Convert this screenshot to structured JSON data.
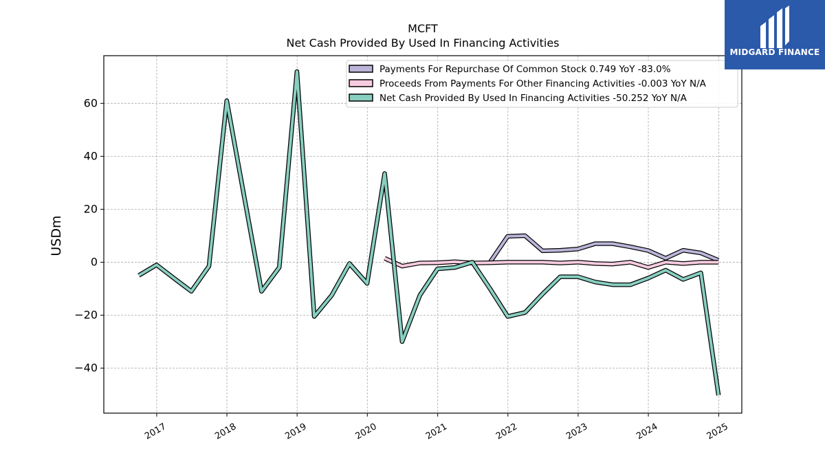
{
  "brand": {
    "name": "MIDGARD FINANCE",
    "bg_color": "#2b5aab"
  },
  "chart_data": {
    "type": "line",
    "title": "MCFT",
    "subtitle": "Net Cash Provided By Used In Financing Activities",
    "ylabel": "USDm",
    "xlabel": "",
    "xlim": [
      "2016-04-01",
      "2025-05-01"
    ],
    "ylim": [
      -57,
      78
    ],
    "yticks": [
      -40,
      -20,
      0,
      20,
      40,
      60
    ],
    "ytick_labels": [
      "−40",
      "−20",
      "0",
      "20",
      "40",
      "60"
    ],
    "xticks": [
      "2017-01-01",
      "2018-01-01",
      "2019-01-01",
      "2020-01-01",
      "2021-01-01",
      "2022-01-01",
      "2023-01-01",
      "2024-01-01",
      "2025-01-01"
    ],
    "xtick_labels": [
      "2017",
      "2018",
      "2019",
      "2020",
      "2021",
      "2022",
      "2023",
      "2024",
      "2025"
    ],
    "grid": true,
    "legend_position": "top-right",
    "series": [
      {
        "name": "Payments For Repurchase Of Common Stock",
        "legend_label": "Payments For Repurchase Of Common Stock  0.749 YoY -83.0%",
        "color": "#bcb4d8",
        "x": [
          "2021-09-30",
          "2021-12-31",
          "2022-03-31",
          "2022-06-30",
          "2022-09-30",
          "2022-12-31",
          "2023-03-31",
          "2023-06-30",
          "2023-09-30",
          "2023-12-31",
          "2024-03-31",
          "2024-06-30",
          "2024-09-30",
          "2024-12-31"
        ],
        "y": [
          0.0,
          9.8,
          10.0,
          4.3,
          4.5,
          5.0,
          7.0,
          7.0,
          5.8,
          4.4,
          1.5,
          4.5,
          3.5,
          0.749
        ]
      },
      {
        "name": "Proceeds From Payments For Other Financing Activities",
        "legend_label": "Proceeds From Payments For Other Financing Activities  -0.003 YoY N/A",
        "color": "#f8cce0",
        "x": [
          "2020-03-31",
          "2020-06-30",
          "2020-09-30",
          "2020-12-31",
          "2021-03-31",
          "2021-06-30",
          "2021-09-30",
          "2021-12-31",
          "2022-03-31",
          "2022-06-30",
          "2022-09-30",
          "2022-12-31",
          "2023-03-31",
          "2023-06-30",
          "2023-09-30",
          "2023-12-31",
          "2024-03-31",
          "2024-06-30",
          "2024-09-30",
          "2024-12-31"
        ],
        "y": [
          1.5,
          -1.5,
          -0.3,
          -0.2,
          0.2,
          -0.3,
          -0.2,
          0.0,
          0.0,
          0.0,
          -0.3,
          0.0,
          -0.5,
          -0.7,
          0.0,
          -2.0,
          0.0,
          -0.5,
          0.0,
          -0.003
        ]
      },
      {
        "name": "Net Cash Provided By Used In Financing Activities",
        "legend_label": "Net Cash Provided By Used In Financing Activities  -50.252 YoY N/A",
        "color": "#88cfc1",
        "x": [
          "2016-09-30",
          "2016-12-31",
          "2017-03-31",
          "2017-06-30",
          "2017-09-30",
          "2017-12-31",
          "2018-03-31",
          "2018-06-30",
          "2018-09-30",
          "2018-12-31",
          "2019-03-31",
          "2019-06-30",
          "2019-09-30",
          "2019-12-31",
          "2020-03-31",
          "2020-06-30",
          "2020-09-30",
          "2020-12-31",
          "2021-03-31",
          "2021-06-30",
          "2021-09-30",
          "2021-12-31",
          "2022-03-31",
          "2022-06-30",
          "2022-09-30",
          "2022-12-31",
          "2023-03-31",
          "2023-06-30",
          "2023-09-30",
          "2023-12-31",
          "2024-03-31",
          "2024-06-30",
          "2024-09-30",
          "2024-12-31"
        ],
        "y": [
          -5.0,
          -1.0,
          -6.0,
          -11.0,
          -1.5,
          61.0,
          25.0,
          -11.0,
          -2.0,
          72.0,
          -20.5,
          -12.5,
          -0.5,
          -8.0,
          33.5,
          -30.0,
          -12.5,
          -2.5,
          -2.0,
          0.0,
          -10.0,
          -20.5,
          -19.0,
          -12.0,
          -5.5,
          -5.5,
          -7.5,
          -8.5,
          -8.5,
          -6.0,
          -3.0,
          -6.5,
          -4.0,
          -50.252
        ]
      }
    ]
  }
}
